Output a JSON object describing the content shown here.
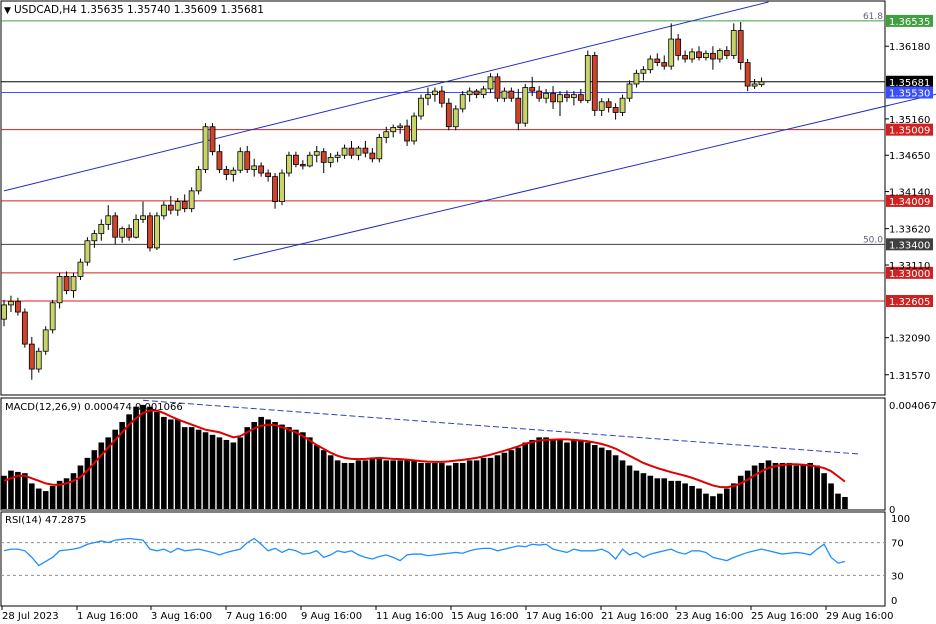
{
  "chart_data": [
    {
      "type": "candlestick",
      "pane": "main",
      "title": "USDCAD,H4  1.35635 1.35740 1.35609 1.35681",
      "symbol": "USDCAD",
      "timeframe": "H4",
      "ohlc_label": {
        "open": 1.35635,
        "high": 1.3574,
        "low": 1.35609,
        "close": 1.35681
      },
      "ylim": [
        1.313,
        1.368
      ],
      "y_ticks": [
        "1.36180",
        "1.35160",
        "1.34650",
        "1.34140",
        "1.33620",
        "1.33110",
        "1.32090",
        "1.31570"
      ],
      "x_ticks": [
        "28 Jul 2023",
        "1 Aug 16:00",
        "3 Aug 16:00",
        "7 Aug 16:00",
        "9 Aug 16:00",
        "11 Aug 16:00",
        "15 Aug 16:00",
        "17 Aug 16:00",
        "21 Aug 16:00",
        "23 Aug 16:00",
        "25 Aug 16:00",
        "29 Aug 16:00"
      ],
      "bull_color": "#c8d46a",
      "bear_color": "#d0432b",
      "candles": [
        [
          1.3235,
          1.3262,
          1.3225,
          1.3255
        ],
        [
          1.3255,
          1.3268,
          1.3245,
          1.326
        ],
        [
          1.326,
          1.3265,
          1.324,
          1.3245
        ],
        [
          1.3245,
          1.325,
          1.3195,
          1.32
        ],
        [
          1.32,
          1.321,
          1.315,
          1.3165
        ],
        [
          1.3165,
          1.3195,
          1.316,
          1.319
        ],
        [
          1.319,
          1.3225,
          1.3185,
          1.322
        ],
        [
          1.322,
          1.3262,
          1.3215,
          1.3258
        ],
        [
          1.3258,
          1.33,
          1.325,
          1.3295
        ],
        [
          1.3295,
          1.3302,
          1.327,
          1.3275
        ],
        [
          1.3275,
          1.33,
          1.3265,
          1.3295
        ],
        [
          1.3295,
          1.332,
          1.329,
          1.3315
        ],
        [
          1.3315,
          1.335,
          1.331,
          1.3345
        ],
        [
          1.3345,
          1.336,
          1.3335,
          1.3355
        ],
        [
          1.3355,
          1.3375,
          1.3345,
          1.3368
        ],
        [
          1.3368,
          1.3395,
          1.336,
          1.338
        ],
        [
          1.338,
          1.3385,
          1.334,
          1.335
        ],
        [
          1.335,
          1.3365,
          1.3342,
          1.3362
        ],
        [
          1.3362,
          1.3368,
          1.3345,
          1.335
        ],
        [
          1.335,
          1.3382,
          1.3348,
          1.3375
        ],
        [
          1.3375,
          1.34,
          1.337,
          1.338
        ],
        [
          1.338,
          1.3385,
          1.333,
          1.3335
        ],
        [
          1.3335,
          1.3385,
          1.3332,
          1.338
        ],
        [
          1.338,
          1.34,
          1.3375,
          1.3395
        ],
        [
          1.3395,
          1.3408,
          1.3382,
          1.3388
        ],
        [
          1.3388,
          1.3405,
          1.338,
          1.34
        ],
        [
          1.34,
          1.341,
          1.3385,
          1.339
        ],
        [
          1.339,
          1.342,
          1.3385,
          1.3415
        ],
        [
          1.3415,
          1.345,
          1.341,
          1.3445
        ],
        [
          1.3445,
          1.351,
          1.344,
          1.3505
        ],
        [
          1.3505,
          1.351,
          1.3465,
          1.347
        ],
        [
          1.347,
          1.348,
          1.344,
          1.3445
        ],
        [
          1.3445,
          1.345,
          1.343,
          1.3438
        ],
        [
          1.3438,
          1.3448,
          1.3428,
          1.3444
        ],
        [
          1.3444,
          1.3476,
          1.344,
          1.347
        ],
        [
          1.347,
          1.3478,
          1.344,
          1.3445
        ],
        [
          1.3445,
          1.346,
          1.3435,
          1.345
        ],
        [
          1.345,
          1.3455,
          1.3435,
          1.344
        ],
        [
          1.344,
          1.3445,
          1.3428,
          1.3435
        ],
        [
          1.3435,
          1.344,
          1.339,
          1.34
        ],
        [
          1.34,
          1.3445,
          1.3395,
          1.344
        ],
        [
          1.344,
          1.347,
          1.3435,
          1.3465
        ],
        [
          1.3465,
          1.347,
          1.3448,
          1.3452
        ],
        [
          1.3452,
          1.3458,
          1.3445,
          1.345
        ],
        [
          1.345,
          1.347,
          1.3448,
          1.3465
        ],
        [
          1.3465,
          1.3478,
          1.3455,
          1.347
        ],
        [
          1.347,
          1.3475,
          1.344,
          1.3455
        ],
        [
          1.3455,
          1.3468,
          1.3448,
          1.3462
        ],
        [
          1.3462,
          1.347,
          1.3455,
          1.3465
        ],
        [
          1.3465,
          1.348,
          1.346,
          1.3475
        ],
        [
          1.3475,
          1.3485,
          1.346,
          1.3465
        ],
        [
          1.3465,
          1.3478,
          1.3458,
          1.3475
        ],
        [
          1.3475,
          1.3485,
          1.3462,
          1.3468
        ],
        [
          1.3468,
          1.3475,
          1.3455,
          1.346
        ],
        [
          1.346,
          1.3495,
          1.3455,
          1.349
        ],
        [
          1.349,
          1.3505,
          1.3482,
          1.3498
        ],
        [
          1.3498,
          1.3508,
          1.349,
          1.3504
        ],
        [
          1.3504,
          1.351,
          1.3495,
          1.3506
        ],
        [
          1.3506,
          1.3515,
          1.3478,
          1.3485
        ],
        [
          1.3485,
          1.3525,
          1.348,
          1.352
        ],
        [
          1.352,
          1.355,
          1.3515,
          1.3545
        ],
        [
          1.3545,
          1.356,
          1.3535,
          1.355
        ],
        [
          1.355,
          1.356,
          1.354,
          1.3555
        ],
        [
          1.3555,
          1.3562,
          1.3532,
          1.3538
        ],
        [
          1.3538,
          1.3545,
          1.35,
          1.3505
        ],
        [
          1.3505,
          1.3535,
          1.35,
          1.353
        ],
        [
          1.353,
          1.3555,
          1.3525,
          1.355
        ],
        [
          1.355,
          1.356,
          1.354,
          1.3555
        ],
        [
          1.3555,
          1.3558,
          1.3545,
          1.355
        ],
        [
          1.355,
          1.3562,
          1.3545,
          1.3558
        ],
        [
          1.3558,
          1.358,
          1.3552,
          1.3575
        ],
        [
          1.3575,
          1.358,
          1.354,
          1.3545
        ],
        [
          1.3545,
          1.356,
          1.354,
          1.3555
        ],
        [
          1.3555,
          1.356,
          1.354,
          1.3545
        ],
        [
          1.3545,
          1.3558,
          1.35,
          1.351
        ],
        [
          1.351,
          1.3565,
          1.3505,
          1.356
        ],
        [
          1.356,
          1.3575,
          1.3548,
          1.3555
        ],
        [
          1.3555,
          1.3562,
          1.354,
          1.3545
        ],
        [
          1.3545,
          1.3558,
          1.3538,
          1.3552
        ],
        [
          1.3552,
          1.3562,
          1.353,
          1.354
        ],
        [
          1.354,
          1.3555,
          1.352,
          1.355
        ],
        [
          1.355,
          1.3556,
          1.354,
          1.3546
        ],
        [
          1.3546,
          1.3555,
          1.3535,
          1.355
        ],
        [
          1.355,
          1.3558,
          1.3538,
          1.3542
        ],
        [
          1.3542,
          1.3612,
          1.3538,
          1.3605
        ],
        [
          1.3605,
          1.361,
          1.352,
          1.3528
        ],
        [
          1.3528,
          1.3545,
          1.352,
          1.354
        ],
        [
          1.354,
          1.3545,
          1.3525,
          1.3532
        ],
        [
          1.3532,
          1.3538,
          1.3515,
          1.3525
        ],
        [
          1.3525,
          1.355,
          1.352,
          1.3545
        ],
        [
          1.3545,
          1.357,
          1.354,
          1.3565
        ],
        [
          1.3565,
          1.3585,
          1.356,
          1.358
        ],
        [
          1.358,
          1.359,
          1.357,
          1.3585
        ],
        [
          1.3585,
          1.3605,
          1.358,
          1.36
        ],
        [
          1.36,
          1.3608,
          1.359,
          1.3595
        ],
        [
          1.3595,
          1.3605,
          1.3585,
          1.359
        ],
        [
          1.359,
          1.365,
          1.3585,
          1.3628
        ],
        [
          1.3628,
          1.3635,
          1.3598,
          1.3605
        ],
        [
          1.3605,
          1.3612,
          1.3595,
          1.36
        ],
        [
          1.36,
          1.3615,
          1.3595,
          1.361
        ],
        [
          1.361,
          1.3618,
          1.3598,
          1.3602
        ],
        [
          1.3602,
          1.3612,
          1.3598,
          1.3608
        ],
        [
          1.3608,
          1.3618,
          1.3585,
          1.36
        ],
        [
          1.36,
          1.3615,
          1.3595,
          1.3612
        ],
        [
          1.3612,
          1.3618,
          1.36,
          1.3605
        ],
        [
          1.3605,
          1.365,
          1.36,
          1.364
        ],
        [
          1.364,
          1.3652,
          1.3585,
          1.3595
        ],
        [
          1.3595,
          1.36,
          1.3555,
          1.3562
        ],
        [
          1.3562,
          1.3572,
          1.3558,
          1.3565
        ],
        [
          1.3564,
          1.3574,
          1.3561,
          1.3568
        ]
      ]
    },
    {
      "type": "levels",
      "pane": "main",
      "levels": [
        {
          "price": 1.36535,
          "label": "1.36535",
          "color": "#40a040",
          "badge": true
        },
        {
          "price": 1.35681,
          "label": "1.35681",
          "color": "#000000",
          "badge": true
        },
        {
          "price": 1.3553,
          "label": "1.35530",
          "color": "#3a4fff",
          "badge": true
        },
        {
          "price": 1.35009,
          "label": "1.35009",
          "color": "#d02020",
          "badge": true
        },
        {
          "price": 1.34009,
          "label": "1.34009",
          "color": "#d02020",
          "badge": true
        },
        {
          "price": 1.334,
          "label": "1.33400",
          "color": "#404040",
          "badge": true
        },
        {
          "price": 1.33,
          "label": "1.33000",
          "color": "#d02020",
          "badge": true
        },
        {
          "price": 1.32605,
          "label": "1.32605",
          "color": "#d02020",
          "badge": true
        }
      ],
      "fib_labels": [
        {
          "price": 1.36535,
          "text": "61.8"
        },
        {
          "price": 1.334,
          "text": "50.0"
        }
      ],
      "channel_color": "#2030c0",
      "channel": {
        "lower": [
          [
            33,
            1.3318
          ],
          [
            136,
            1.3555
          ]
        ],
        "upper": [
          [
            0,
            1.3415
          ],
          [
            110,
            1.368
          ]
        ]
      }
    },
    {
      "type": "histogram+line",
      "pane": "macd",
      "title": "MACD(12,26,9) 0.000474 0.001066",
      "series": [
        {
          "name": "MACD",
          "type": "bar",
          "color": "#000000"
        },
        {
          "name": "Signal",
          "type": "line",
          "color": "#e00000"
        }
      ],
      "ylim": [
        0,
        0.0043
      ],
      "y_ticks": [
        "0.004067",
        "0"
      ],
      "macd": [
        0.0013,
        0.0015,
        0.00145,
        0.0014,
        0.001,
        0.0008,
        0.0007,
        0.0009,
        0.0011,
        0.0012,
        0.0014,
        0.0017,
        0.002,
        0.0023,
        0.0026,
        0.0028,
        0.0031,
        0.0034,
        0.0037,
        0.004,
        0.00407,
        0.004,
        0.0038,
        0.0036,
        0.0035,
        0.0035,
        0.0032,
        0.0032,
        0.0031,
        0.003,
        0.0029,
        0.0028,
        0.0027,
        0.0026,
        0.0028,
        0.0032,
        0.0034,
        0.0036,
        0.0035,
        0.0034,
        0.0033,
        0.0032,
        0.0031,
        0.003,
        0.0028,
        0.0025,
        0.0023,
        0.0021,
        0.0019,
        0.0018,
        0.0018,
        0.0019,
        0.0019,
        0.002,
        0.002,
        0.0019,
        0.0019,
        0.0019,
        0.0019,
        0.0019,
        0.0018,
        0.0018,
        0.0018,
        0.0018,
        0.0017,
        0.0018,
        0.0018,
        0.0019,
        0.0019,
        0.002,
        0.002,
        0.0021,
        0.0022,
        0.0023,
        0.0024,
        0.0026,
        0.0027,
        0.0028,
        0.0028,
        0.0027,
        0.0027,
        0.0026,
        0.0027,
        0.0027,
        0.0026,
        0.0025,
        0.0024,
        0.0023,
        0.0021,
        0.0019,
        0.0017,
        0.0015,
        0.0014,
        0.0013,
        0.0012,
        0.0012,
        0.0011,
        0.0011,
        0.001,
        0.0009,
        0.0008,
        0.0006,
        0.0005,
        0.0006,
        0.0008,
        0.001,
        0.0013,
        0.0015,
        0.0017,
        0.0018,
        0.0019,
        0.0018,
        0.0018,
        0.0018,
        0.0017,
        0.0017,
        0.0018,
        0.0017,
        0.0014,
        0.001,
        0.0006,
        0.00047
      ],
      "signal": [
        0.0011,
        0.0012,
        0.0013,
        0.0013,
        0.0012,
        0.0011,
        0.001,
        0.00095,
        0.00095,
        0.001,
        0.0011,
        0.00125,
        0.0015,
        0.0018,
        0.0021,
        0.0024,
        0.0027,
        0.003,
        0.0033,
        0.00355,
        0.00375,
        0.00385,
        0.00385,
        0.00375,
        0.00362,
        0.0035,
        0.0034,
        0.0033,
        0.0032,
        0.0031,
        0.00305,
        0.003,
        0.0029,
        0.0028,
        0.00285,
        0.003,
        0.00315,
        0.00325,
        0.0033,
        0.00328,
        0.0032,
        0.0031,
        0.003,
        0.00285,
        0.00268,
        0.0025,
        0.00235,
        0.0022,
        0.00208,
        0.002,
        0.00196,
        0.00195,
        0.00196,
        0.00198,
        0.002,
        0.00198,
        0.00196,
        0.00195,
        0.00193,
        0.0019,
        0.00187,
        0.00185,
        0.00184,
        0.00184,
        0.00186,
        0.00189,
        0.00192,
        0.00196,
        0.002,
        0.00206,
        0.00212,
        0.0022,
        0.00228,
        0.00236,
        0.00245,
        0.00255,
        0.00262,
        0.00268,
        0.0027,
        0.00271,
        0.00272,
        0.00272,
        0.0027,
        0.00268,
        0.00265,
        0.0026,
        0.00254,
        0.00246,
        0.00236,
        0.00222,
        0.00208,
        0.00194,
        0.0018,
        0.0017,
        0.0016,
        0.00152,
        0.00144,
        0.00137,
        0.0013,
        0.00122,
        0.00112,
        0.00102,
        0.00092,
        0.00086,
        0.00085,
        0.0009,
        0.001,
        0.00115,
        0.00132,
        0.00148,
        0.0016,
        0.00168,
        0.00172,
        0.00175,
        0.00175,
        0.00173,
        0.0017,
        0.00166,
        0.0016,
        0.00148,
        0.00128,
        0.00107
      ],
      "trendline": [
        [
          20,
          0.00425
        ],
        [
          123,
          0.00215
        ]
      ]
    },
    {
      "type": "line",
      "pane": "rsi",
      "title": "RSI(14) 47.2875",
      "series": [
        {
          "name": "RSI",
          "color": "#1e90ff"
        }
      ],
      "ylim": [
        0,
        100
      ],
      "y_ticks": [
        "100",
        "70",
        "30",
        "0"
      ],
      "levels": [
        70,
        30
      ],
      "values": [
        60,
        62,
        62,
        60,
        52,
        42,
        47,
        52,
        60,
        61,
        62,
        64,
        68,
        70,
        72,
        70,
        73,
        74,
        75,
        74,
        73,
        62,
        60,
        62,
        58,
        63,
        60,
        61,
        62,
        60,
        58,
        55,
        58,
        60,
        62,
        70,
        75,
        68,
        60,
        63,
        58,
        62,
        60,
        56,
        57,
        60,
        52,
        55,
        60,
        58,
        60,
        55,
        52,
        50,
        53,
        55,
        52,
        48,
        55,
        56,
        56,
        54,
        55,
        56,
        57,
        58,
        57,
        60,
        62,
        63,
        63,
        60,
        62,
        64,
        66,
        65,
        68,
        67,
        68,
        62,
        60,
        58,
        62,
        60,
        60,
        60,
        62,
        58,
        50,
        62,
        55,
        58,
        52,
        56,
        58,
        60,
        62,
        58,
        56,
        60,
        60,
        58,
        52,
        50,
        48,
        52,
        55,
        58,
        60,
        62,
        60,
        58,
        56,
        57,
        58,
        57,
        55,
        62,
        68,
        52,
        45,
        47
      ]
    }
  ]
}
